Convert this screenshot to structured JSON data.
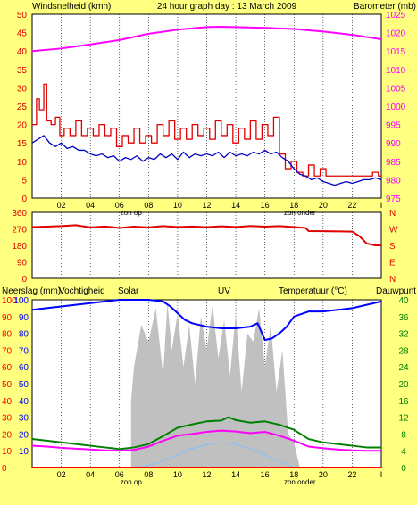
{
  "title": "24 hour graph day : 13 March 2009",
  "colors": {
    "background": "#FFFF80",
    "plot": "#FFFFFF",
    "axis": "#000000",
    "wind_avg": "#0000C0",
    "wind_gust": "#E00000",
    "barometer": "#FF00FF",
    "rain": "#FF0000",
    "humidity": "#0000FF",
    "solar": "#C0C0C0",
    "uv": "#80C0FF",
    "temperature": "#008000",
    "dewpoint": "#FF00FF",
    "grid": "#000000"
  },
  "x_labels": [
    "02",
    "04",
    "06",
    "08",
    "10",
    "12",
    "14",
    "16",
    "18",
    "20",
    "22",
    "I"
  ],
  "sun": {
    "sunrise": "zon op",
    "sunset": "zon onder",
    "sunrise_hour": 6.8,
    "sunset_hour": 18.4
  },
  "chart_data": [
    {
      "type": "line",
      "id": "wind",
      "left_label": "Windsnelheid (kmh)",
      "right_label": "Barometer (mb)",
      "left_ticks": [
        "0",
        "5",
        "10",
        "15",
        "20",
        "25",
        "30",
        "35",
        "40",
        "45",
        "50"
      ],
      "right_ticks": [
        "975",
        "980",
        "985",
        "990",
        "995",
        "1000",
        "1005",
        "1010",
        "1015",
        "1020",
        "1025"
      ],
      "left_range": [
        0,
        50
      ],
      "right_range": [
        975,
        1025
      ],
      "x_range": [
        0,
        24
      ],
      "grid": "vertical",
      "series": [
        {
          "key": "barometer",
          "axis": "right",
          "x": [
            0,
            2,
            4,
            6,
            8,
            10,
            12,
            13,
            14,
            16,
            18,
            20,
            22,
            24
          ],
          "y": [
            1015,
            1015.7,
            1016.8,
            1018,
            1019.7,
            1020.8,
            1021.5,
            1021.6,
            1021.5,
            1021.3,
            1021,
            1020.3,
            1019.4,
            1018.2
          ]
        },
        {
          "key": "wind_gust",
          "axis": "left",
          "step": true,
          "x": [
            0,
            0.3,
            0.5,
            0.8,
            1.0,
            1.3,
            1.6,
            1.9,
            2.2,
            2.6,
            3.0,
            3.4,
            3.8,
            4.2,
            4.6,
            5.0,
            5.4,
            5.8,
            6.2,
            6.6,
            7.0,
            7.4,
            7.8,
            8.2,
            8.6,
            9.0,
            9.4,
            9.8,
            10.2,
            10.6,
            11.0,
            11.4,
            11.8,
            12.2,
            12.6,
            13.0,
            13.4,
            13.8,
            14.2,
            14.6,
            15.0,
            15.4,
            15.8,
            16.2,
            16.6,
            17.0,
            17.4,
            17.8,
            18.2,
            18.6,
            19.0,
            19.4,
            19.8,
            20.2,
            20.6,
            21.0,
            21.4,
            21.8,
            22.2,
            22.6,
            23.0,
            23.4,
            23.8,
            24
          ],
          "y": [
            20,
            27,
            24,
            31,
            21,
            20,
            22,
            17,
            19,
            17,
            21,
            17,
            19,
            17,
            20,
            17,
            19,
            14,
            17,
            15,
            19,
            15,
            17,
            15,
            20,
            17,
            21,
            16,
            19,
            16,
            20,
            17,
            19,
            16,
            21,
            17,
            20,
            15,
            19,
            16,
            21,
            16,
            20,
            17,
            22,
            12,
            8,
            10,
            7,
            6,
            9,
            6,
            8,
            6,
            6,
            6,
            6,
            6,
            6,
            6,
            6,
            7,
            6,
            6
          ]
        },
        {
          "key": "wind_avg",
          "axis": "left",
          "x": [
            0,
            0.4,
            0.8,
            1.2,
            1.6,
            2.0,
            2.4,
            2.8,
            3.2,
            3.6,
            4.0,
            4.4,
            4.8,
            5.2,
            5.6,
            6.0,
            6.4,
            6.8,
            7.2,
            7.6,
            8.0,
            8.4,
            8.8,
            9.2,
            9.6,
            10.0,
            10.4,
            10.8,
            11.2,
            11.6,
            12.0,
            12.4,
            12.8,
            13.2,
            13.6,
            14.0,
            14.4,
            14.8,
            15.2,
            15.6,
            16.0,
            16.4,
            16.8,
            17.2,
            17.6,
            18.0,
            18.4,
            18.8,
            19.2,
            19.6,
            20.0,
            20.4,
            20.8,
            21.2,
            21.6,
            22.0,
            22.4,
            22.8,
            23.2,
            23.6,
            24
          ],
          "y": [
            15,
            16,
            17,
            15,
            14,
            15,
            13.5,
            14,
            13,
            13,
            12,
            11.5,
            12,
            11,
            11.5,
            10,
            11,
            10.5,
            11.5,
            10,
            11,
            10.5,
            12,
            11,
            12,
            10.5,
            12.5,
            11,
            12,
            11.5,
            12,
            11.5,
            12.5,
            11,
            12.5,
            11.5,
            12,
            11.5,
            12.5,
            12,
            13,
            12,
            12.5,
            11,
            10,
            8,
            6.5,
            6,
            5,
            5.5,
            4.5,
            4,
            3.5,
            4,
            4.5,
            4,
            4.5,
            5,
            5,
            5.5,
            5
          ]
        }
      ]
    },
    {
      "type": "line",
      "id": "direction",
      "left_ticks": [
        "0",
        "90",
        "180",
        "270",
        "360"
      ],
      "right_ticks": [
        "N",
        "E",
        "S",
        "W",
        "N"
      ],
      "y_range": [
        0,
        360
      ],
      "x_range": [
        0,
        24
      ],
      "series": [
        {
          "key": "direction",
          "color_key": "wind_gust",
          "x": [
            0,
            1,
            2,
            3,
            4,
            5,
            6,
            7,
            8,
            9,
            10,
            11,
            12,
            13,
            14,
            15,
            16,
            17,
            18,
            18.8,
            19,
            20,
            21,
            22,
            22.5,
            23,
            23.6,
            24
          ],
          "y": [
            280,
            282,
            285,
            290,
            278,
            283,
            275,
            282,
            278,
            285,
            280,
            283,
            279,
            284,
            280,
            286,
            282,
            285,
            280,
            275,
            258,
            257,
            256,
            255,
            230,
            190,
            180,
            180
          ]
        }
      ]
    },
    {
      "type": "line",
      "id": "rain_temp",
      "labels": [
        "Neerslag (mm)",
        "Vochtigheid",
        "Solar",
        "UV",
        "Temperatuur (°C)",
        "Dauwpunt"
      ],
      "left_ticks": [
        "0",
        "10",
        "20",
        "30",
        "40",
        "50",
        "60",
        "70",
        "80",
        "90",
        "100"
      ],
      "humidity_ticks": [
        "10",
        "20",
        "30",
        "40",
        "50",
        "60",
        "70",
        "80",
        "90",
        "100"
      ],
      "right_ticks": [
        "0",
        "4",
        "8",
        "12",
        "16",
        "20",
        "24",
        "28",
        "32",
        "36",
        "40"
      ],
      "humidity_range": [
        0,
        100
      ],
      "temperature_range": [
        0,
        40
      ],
      "x_range": [
        0,
        24
      ],
      "series": [
        {
          "key": "solar",
          "type": "area",
          "x": [
            6.8,
            7.0,
            7.5,
            8.0,
            8.5,
            9.0,
            9.3,
            9.6,
            10.0,
            10.4,
            10.8,
            11.2,
            11.6,
            12.0,
            12.4,
            12.8,
            13.2,
            13.6,
            14.0,
            14.4,
            14.8,
            15.2,
            15.6,
            16.0,
            16.4,
            16.8,
            17.2,
            17.6,
            18.0,
            18.4
          ],
          "y": [
            40,
            60,
            85,
            75,
            95,
            55,
            98,
            70,
            92,
            60,
            85,
            50,
            90,
            70,
            97,
            65,
            88,
            55,
            92,
            45,
            80,
            75,
            95,
            60,
            85,
            45,
            70,
            20,
            15,
            0
          ]
        },
        {
          "key": "uv",
          "x": [
            7,
            8,
            9,
            10,
            11,
            12,
            13,
            14,
            15,
            16,
            17,
            18
          ],
          "y": [
            0,
            0.5,
            1.5,
            3,
            4.5,
            5.5,
            6,
            5.5,
            4.5,
            3,
            1.5,
            0
          ]
        },
        {
          "key": "humidity",
          "axis": "humidity",
          "x": [
            0,
            1,
            2,
            3,
            4,
            5,
            6,
            7,
            8,
            9,
            9.5,
            10,
            10.5,
            11,
            12,
            13,
            14,
            15,
            15.5,
            16,
            16.5,
            17,
            17.5,
            18,
            19,
            20,
            21,
            22,
            23,
            24
          ],
          "y": [
            94,
            95,
            96,
            97,
            98,
            99,
            100,
            100,
            100,
            99,
            96,
            92,
            88,
            86,
            84,
            83,
            83,
            84,
            86,
            76,
            77,
            80,
            84,
            90,
            93,
            93,
            94,
            95,
            97,
            99
          ]
        },
        {
          "key": "temperature",
          "axis": "temperature",
          "x": [
            0,
            1,
            2,
            3,
            4,
            5,
            6,
            7,
            8,
            9,
            10,
            11,
            12,
            13,
            13.5,
            14,
            15,
            16,
            17,
            18,
            19,
            20,
            21,
            22,
            23,
            24
          ],
          "y": [
            6.8,
            6.4,
            6,
            5.6,
            5.2,
            4.8,
            4.4,
            4.8,
            5.6,
            7.5,
            9.5,
            10.3,
            11,
            11.2,
            12,
            11.3,
            10.7,
            11,
            10.2,
            9,
            6.8,
            6,
            5.6,
            5.2,
            4.8,
            4.8
          ]
        },
        {
          "key": "dewpoint",
          "axis": "temperature",
          "x": [
            0,
            1,
            2,
            3,
            4,
            5,
            6,
            7,
            8,
            9,
            10,
            11,
            12,
            13,
            14,
            15,
            16,
            17,
            18,
            19,
            20,
            21,
            22,
            23,
            24
          ],
          "y": [
            5.2,
            5,
            4.7,
            4.5,
            4.3,
            4.1,
            4,
            4.2,
            5,
            6.4,
            7.6,
            8,
            8.5,
            8.8,
            8.6,
            8.2,
            8.5,
            7.6,
            6.4,
            5,
            4.6,
            4.3,
            4.1,
            4,
            4
          ]
        },
        {
          "key": "rain",
          "axis": "temperature",
          "x": [
            0,
            24
          ],
          "y": [
            0,
            0
          ]
        }
      ]
    }
  ]
}
